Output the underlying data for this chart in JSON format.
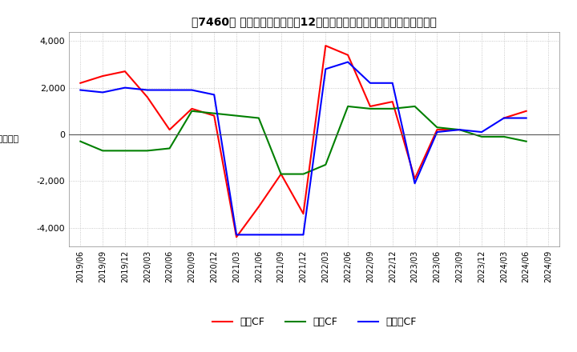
{
  "title": "[7460]  キャッシュフローの12か月移動合計の対前年同期増減額の推移",
  "title_full": "【7460】 キャッシュフローの12か月移動合計の対前年同期増減額の推移",
  "ylabel": "（百万円）",
  "ylim": [
    -4800,
    4400
  ],
  "yticks": [
    -4000,
    -2000,
    0,
    2000,
    4000
  ],
  "dates": [
    "2019/06",
    "2019/09",
    "2019/12",
    "2020/03",
    "2020/06",
    "2020/09",
    "2020/12",
    "2021/03",
    "2021/06",
    "2021/09",
    "2021/12",
    "2022/03",
    "2022/06",
    "2022/09",
    "2022/12",
    "2023/03",
    "2023/06",
    "2023/09",
    "2023/12",
    "2024/03",
    "2024/06",
    "2024/09"
  ],
  "operating_cf": [
    2200,
    2500,
    2700,
    1600,
    200,
    1100,
    800,
    -4400,
    -3100,
    -1700,
    -3400,
    3800,
    3400,
    1200,
    1400,
    -1900,
    200,
    200,
    null,
    700,
    1000,
    null
  ],
  "investing_cf": [
    -300,
    -700,
    -700,
    -700,
    -600,
    1000,
    900,
    800,
    700,
    -1700,
    -1700,
    -1300,
    1200,
    1100,
    1100,
    1200,
    300,
    200,
    -100,
    -100,
    -300,
    null
  ],
  "free_cf": [
    1900,
    1800,
    2000,
    1900,
    1900,
    1900,
    1700,
    -4300,
    -4300,
    -4300,
    -4300,
    2800,
    3100,
    2200,
    2200,
    -2100,
    100,
    200,
    100,
    700,
    700,
    null
  ],
  "line_colors": {
    "operating": "#ff0000",
    "investing": "#008000",
    "free": "#0000ff"
  },
  "legend_labels": [
    "営業CF",
    "投資CF",
    "フリーCF"
  ],
  "bg_color": "#ffffff",
  "grid_color": "#bbbbbb"
}
